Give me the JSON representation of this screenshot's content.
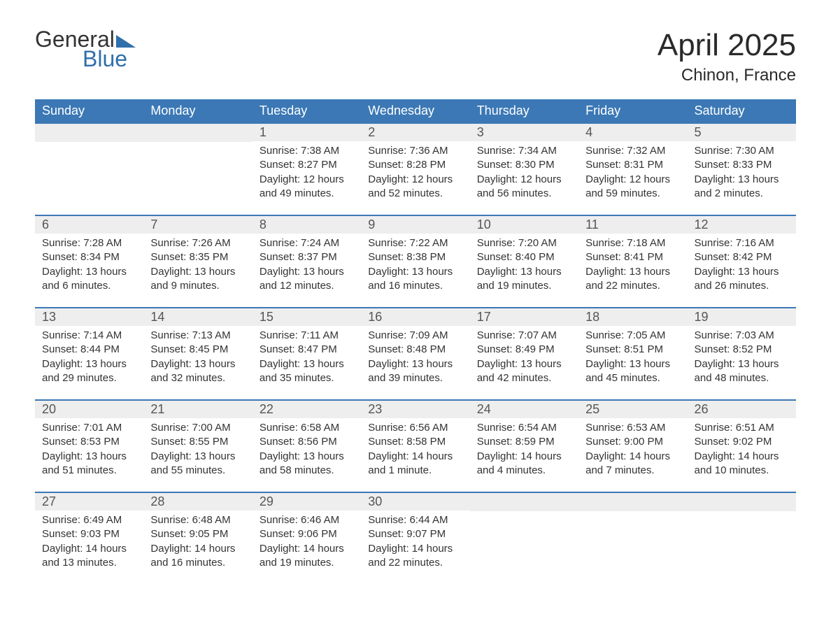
{
  "logo": {
    "word1": "General",
    "word2": "Blue"
  },
  "title": {
    "month_year": "April 2025",
    "location": "Chinon, France"
  },
  "colors": {
    "header_bg": "#3b78b5",
    "header_text": "#ffffff",
    "daynum_bg": "#eeeeee",
    "row_border": "#3b78b5",
    "logo_blue": "#2f6fab",
    "body_text": "#333333"
  },
  "typography": {
    "month_title_fontsize": 44,
    "location_fontsize": 24,
    "weekday_fontsize": 18,
    "daynum_fontsize": 18,
    "body_fontsize": 15,
    "font_family": "Arial"
  },
  "weekdays": [
    "Sunday",
    "Monday",
    "Tuesday",
    "Wednesday",
    "Thursday",
    "Friday",
    "Saturday"
  ],
  "labels": {
    "sunrise": "Sunrise:",
    "sunset": "Sunset:",
    "daylight": "Daylight:"
  },
  "weeks": [
    [
      null,
      null,
      {
        "day": "1",
        "sunrise": "7:38 AM",
        "sunset": "8:27 PM",
        "daylight": "12 hours and 49 minutes."
      },
      {
        "day": "2",
        "sunrise": "7:36 AM",
        "sunset": "8:28 PM",
        "daylight": "12 hours and 52 minutes."
      },
      {
        "day": "3",
        "sunrise": "7:34 AM",
        "sunset": "8:30 PM",
        "daylight": "12 hours and 56 minutes."
      },
      {
        "day": "4",
        "sunrise": "7:32 AM",
        "sunset": "8:31 PM",
        "daylight": "12 hours and 59 minutes."
      },
      {
        "day": "5",
        "sunrise": "7:30 AM",
        "sunset": "8:33 PM",
        "daylight": "13 hours and 2 minutes."
      }
    ],
    [
      {
        "day": "6",
        "sunrise": "7:28 AM",
        "sunset": "8:34 PM",
        "daylight": "13 hours and 6 minutes."
      },
      {
        "day": "7",
        "sunrise": "7:26 AM",
        "sunset": "8:35 PM",
        "daylight": "13 hours and 9 minutes."
      },
      {
        "day": "8",
        "sunrise": "7:24 AM",
        "sunset": "8:37 PM",
        "daylight": "13 hours and 12 minutes."
      },
      {
        "day": "9",
        "sunrise": "7:22 AM",
        "sunset": "8:38 PM",
        "daylight": "13 hours and 16 minutes."
      },
      {
        "day": "10",
        "sunrise": "7:20 AM",
        "sunset": "8:40 PM",
        "daylight": "13 hours and 19 minutes."
      },
      {
        "day": "11",
        "sunrise": "7:18 AM",
        "sunset": "8:41 PM",
        "daylight": "13 hours and 22 minutes."
      },
      {
        "day": "12",
        "sunrise": "7:16 AM",
        "sunset": "8:42 PM",
        "daylight": "13 hours and 26 minutes."
      }
    ],
    [
      {
        "day": "13",
        "sunrise": "7:14 AM",
        "sunset": "8:44 PM",
        "daylight": "13 hours and 29 minutes."
      },
      {
        "day": "14",
        "sunrise": "7:13 AM",
        "sunset": "8:45 PM",
        "daylight": "13 hours and 32 minutes."
      },
      {
        "day": "15",
        "sunrise": "7:11 AM",
        "sunset": "8:47 PM",
        "daylight": "13 hours and 35 minutes."
      },
      {
        "day": "16",
        "sunrise": "7:09 AM",
        "sunset": "8:48 PM",
        "daylight": "13 hours and 39 minutes."
      },
      {
        "day": "17",
        "sunrise": "7:07 AM",
        "sunset": "8:49 PM",
        "daylight": "13 hours and 42 minutes."
      },
      {
        "day": "18",
        "sunrise": "7:05 AM",
        "sunset": "8:51 PM",
        "daylight": "13 hours and 45 minutes."
      },
      {
        "day": "19",
        "sunrise": "7:03 AM",
        "sunset": "8:52 PM",
        "daylight": "13 hours and 48 minutes."
      }
    ],
    [
      {
        "day": "20",
        "sunrise": "7:01 AM",
        "sunset": "8:53 PM",
        "daylight": "13 hours and 51 minutes."
      },
      {
        "day": "21",
        "sunrise": "7:00 AM",
        "sunset": "8:55 PM",
        "daylight": "13 hours and 55 minutes."
      },
      {
        "day": "22",
        "sunrise": "6:58 AM",
        "sunset": "8:56 PM",
        "daylight": "13 hours and 58 minutes."
      },
      {
        "day": "23",
        "sunrise": "6:56 AM",
        "sunset": "8:58 PM",
        "daylight": "14 hours and 1 minute."
      },
      {
        "day": "24",
        "sunrise": "6:54 AM",
        "sunset": "8:59 PM",
        "daylight": "14 hours and 4 minutes."
      },
      {
        "day": "25",
        "sunrise": "6:53 AM",
        "sunset": "9:00 PM",
        "daylight": "14 hours and 7 minutes."
      },
      {
        "day": "26",
        "sunrise": "6:51 AM",
        "sunset": "9:02 PM",
        "daylight": "14 hours and 10 minutes."
      }
    ],
    [
      {
        "day": "27",
        "sunrise": "6:49 AM",
        "sunset": "9:03 PM",
        "daylight": "14 hours and 13 minutes."
      },
      {
        "day": "28",
        "sunrise": "6:48 AM",
        "sunset": "9:05 PM",
        "daylight": "14 hours and 16 minutes."
      },
      {
        "day": "29",
        "sunrise": "6:46 AM",
        "sunset": "9:06 PM",
        "daylight": "14 hours and 19 minutes."
      },
      {
        "day": "30",
        "sunrise": "6:44 AM",
        "sunset": "9:07 PM",
        "daylight": "14 hours and 22 minutes."
      },
      null,
      null,
      null
    ]
  ]
}
